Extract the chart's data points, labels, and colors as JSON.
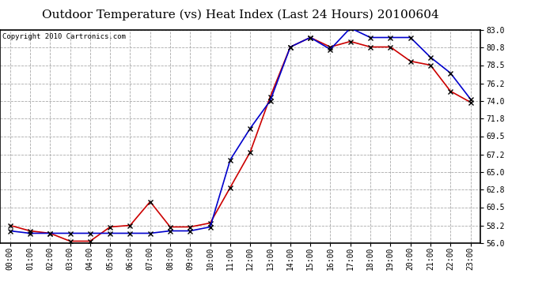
{
  "title": "Outdoor Temperature (vs) Heat Index (Last 24 Hours) 20100604",
  "copyright": "Copyright 2010 Cartronics.com",
  "x_labels": [
    "00:00",
    "01:00",
    "02:00",
    "03:00",
    "04:00",
    "05:00",
    "06:00",
    "07:00",
    "08:00",
    "09:00",
    "10:00",
    "11:00",
    "12:00",
    "13:00",
    "14:00",
    "15:00",
    "16:00",
    "17:00",
    "18:00",
    "19:00",
    "20:00",
    "21:00",
    "22:00",
    "23:00"
  ],
  "temp": [
    58.2,
    57.5,
    57.2,
    56.2,
    56.2,
    58.0,
    58.2,
    61.2,
    58.0,
    58.0,
    58.5,
    63.0,
    67.5,
    74.5,
    80.8,
    82.0,
    80.8,
    81.5,
    80.8,
    80.8,
    79.0,
    78.5,
    75.2,
    73.8
  ],
  "heat_index": [
    57.5,
    57.2,
    57.2,
    57.2,
    57.2,
    57.2,
    57.2,
    57.2,
    57.5,
    57.5,
    58.0,
    66.5,
    70.5,
    74.0,
    80.8,
    82.0,
    80.5,
    83.2,
    82.0,
    82.0,
    82.0,
    79.5,
    77.5,
    74.2
  ],
  "temp_color": "#cc0000",
  "heat_index_color": "#0000cc",
  "marker": "x",
  "marker_color": "#000000",
  "ylim": [
    56.0,
    83.0
  ],
  "yticks": [
    56.0,
    58.2,
    60.5,
    62.8,
    65.0,
    67.2,
    69.5,
    71.8,
    74.0,
    76.2,
    78.5,
    80.8,
    83.0
  ],
  "background_color": "#ffffff",
  "grid_color": "#aaaaaa",
  "title_fontsize": 11,
  "copyright_fontsize": 6.5,
  "tick_fontsize": 7,
  "xlabel_fontsize": 7
}
